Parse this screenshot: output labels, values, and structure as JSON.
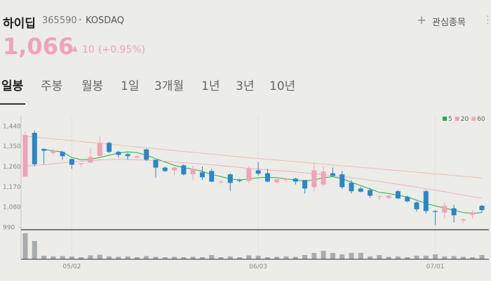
{
  "header": {
    "name": "하이딥",
    "code": "365590",
    "separator": "•",
    "market": "KOSDAQ",
    "watch": "관심종목",
    "price": "1,066",
    "change": "10",
    "change_pct": "(+0.95%)"
  },
  "tabs": [
    "일봉",
    "주봉",
    "월봉",
    "1일",
    "3개월",
    "1년",
    "3년",
    "10년"
  ],
  "chart_data": {
    "type": "candlestick",
    "categories": [
      null,
      null,
      null,
      null,
      null,
      "05/02",
      null,
      null,
      null,
      null,
      null,
      null,
      null,
      null,
      null,
      null,
      null,
      null,
      null,
      null,
      null,
      null,
      null,
      null,
      null,
      "06/03",
      null,
      null,
      null,
      null,
      null,
      null,
      null,
      null,
      null,
      null,
      null,
      null,
      null,
      null,
      null,
      null,
      null,
      null,
      "07/01",
      null,
      null,
      null,
      null,
      null
    ],
    "open": [
      1215,
      1410,
      1338,
      1320,
      1325,
      1293,
      1270,
      1277,
      1306,
      1365,
      1325,
      1315,
      1300,
      1336,
      1290,
      1255,
      1243,
      1265,
      1225,
      1234,
      1240,
      1190,
      1225,
      1200,
      1196,
      1243,
      1230,
      1190,
      1200,
      1206,
      1200,
      1168,
      1180,
      1230,
      1225,
      1187,
      1162,
      1155,
      1125,
      1120,
      1150,
      1125,
      1100,
      1150,
      1062,
      1055,
      1074,
      1020,
      1045,
      1085
    ],
    "high": [
      1415,
      1420,
      1340,
      1340,
      1330,
      1295,
      1275,
      1340,
      1395,
      1370,
      1330,
      1320,
      1310,
      1340,
      1290,
      1260,
      1260,
      1270,
      1262,
      1260,
      1250,
      1200,
      1230,
      1205,
      1260,
      1280,
      1250,
      1200,
      1210,
      1210,
      1200,
      1280,
      1260,
      1255,
      1240,
      1200,
      1170,
      1165,
      1130,
      1135,
      1155,
      1130,
      1105,
      1155,
      1065,
      1100,
      1090,
      1030,
      1065,
      1090
    ],
    "low": [
      1215,
      1260,
      1270,
      1310,
      1290,
      1250,
      1260,
      1275,
      1300,
      1320,
      1300,
      1290,
      1295,
      1285,
      1210,
      1235,
      1220,
      1220,
      1200,
      1200,
      1190,
      1180,
      1150,
      1190,
      1185,
      1220,
      1190,
      1185,
      1195,
      1180,
      1140,
      1150,
      1170,
      1215,
      1160,
      1140,
      1145,
      1120,
      1110,
      1115,
      1115,
      1100,
      1060,
      1050,
      1000,
      1030,
      1010,
      1010,
      1030,
      1055
    ],
    "close": [
      1400,
      1270,
      1330,
      1330,
      1306,
      1268,
      1275,
      1302,
      1365,
      1325,
      1312,
      1306,
      1306,
      1290,
      1255,
      1240,
      1255,
      1225,
      1250,
      1212,
      1193,
      1193,
      1187,
      1196,
      1250,
      1228,
      1193,
      1203,
      1206,
      1193,
      1162,
      1243,
      1237,
      1218,
      1168,
      1150,
      1148,
      1130,
      1128,
      1130,
      1118,
      1105,
      1070,
      1062,
      1058,
      1084,
      1043,
      1025,
      1056,
      1066
    ],
    "up_color": "#f0a3b6",
    "down_color": "#2b86c5",
    "series": [
      {
        "name": "5",
        "color": "#22b04a",
        "values": [
          null,
          null,
          1335,
          1330,
          1325,
          1300,
          1290,
          1292,
          1300,
          1310,
          1320,
          1325,
          1322,
          1310,
          1295,
          1280,
          1265,
          1255,
          1248,
          1238,
          1225,
          1215,
          1205,
          1200,
          1205,
          1210,
          1212,
          1210,
          1205,
          1200,
          1195,
          1200,
          1210,
          1215,
          1205,
          1190,
          1175,
          1160,
          1145,
          1140,
          1132,
          1125,
          1110,
          1095,
          1085,
          1075,
          1065,
          1055,
          1052,
          1055
        ]
      },
      {
        "name": "20",
        "color": "#f0a3b6",
        "values": [
          1262,
          1265,
          1268,
          1272,
          1276,
          1280,
          1283,
          1286,
          1289,
          1291,
          1292,
          1292,
          1290,
          1288,
          1285,
          1283,
          1280,
          1277,
          1274,
          1271,
          1268,
          1264,
          1260,
          1256,
          1252,
          1248,
          1245,
          1242,
          1239,
          1236,
          1232,
          1228,
          1224,
          1220,
          1215,
          1210,
          1205,
          1199,
          1193,
          1187,
          1181,
          1175,
          1168,
          1161,
          1155,
          1148,
          1140,
          1133,
          1126,
          1119
        ]
      },
      {
        "name": "60",
        "color": "#e6b8a2",
        "values": [
          1395,
          1391,
          1387,
          1383,
          1379,
          1375,
          1371,
          1367,
          1363,
          1359,
          1355,
          1351,
          1347,
          1343,
          1339,
          1335,
          1331,
          1327,
          1323,
          1319,
          1315,
          1311,
          1307,
          1303,
          1299,
          1296,
          1292,
          1289,
          1285,
          1282,
          1278,
          1274,
          1271,
          1267,
          1263,
          1260,
          1256,
          1253,
          1249,
          1245,
          1242,
          1238,
          1235,
          1231,
          1227,
          1224,
          1220,
          1216,
          1213,
          1209
        ]
      }
    ],
    "ylim": [
      985,
      1485
    ],
    "yticks": [
      {
        "value": 1440,
        "label": "1,440"
      },
      {
        "value": 1350,
        "label": "1,350"
      },
      {
        "value": 1260,
        "label": "1,260"
      },
      {
        "value": 1170,
        "label": "1,170"
      },
      {
        "value": 1080,
        "label": "1,080"
      },
      990
    ],
    "volume": [
      3700000,
      2600000,
      500000,
      400000,
      450000,
      400000,
      300000,
      550000,
      650000,
      400000,
      350000,
      400000,
      300000,
      450000,
      350000,
      300000,
      350000,
      300000,
      350000,
      300000,
      600000,
      300000,
      400000,
      300000,
      550000,
      500000,
      300000,
      350000,
      400000,
      350000,
      600000,
      900000,
      1200000,
      900000,
      700000,
      900000,
      900000,
      400000,
      600000,
      350000,
      400000,
      300000,
      500000,
      500000,
      700000,
      400000,
      450000,
      350000,
      300000,
      600000
    ],
    "volume_color": "#a9acaf",
    "volume_ylim": [
      0,
      3800000
    ]
  }
}
